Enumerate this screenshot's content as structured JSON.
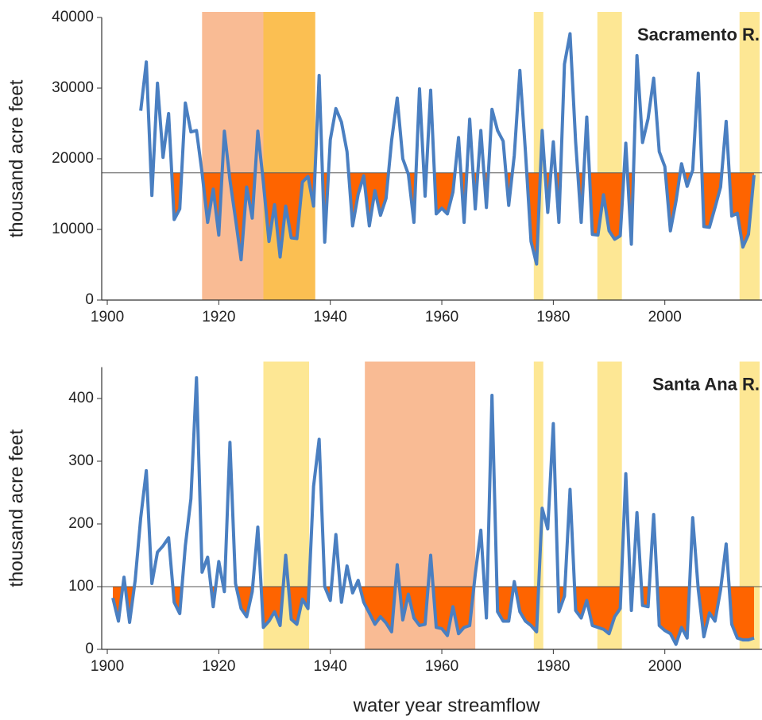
{
  "chart_data": [
    {
      "type": "line",
      "title": "Sacramento R.",
      "y_label": "thousand acre feet",
      "x": [
        1906,
        1907,
        1908,
        1909,
        1910,
        1911,
        1912,
        1913,
        1914,
        1915,
        1916,
        1917,
        1918,
        1919,
        1920,
        1921,
        1922,
        1923,
        1924,
        1925,
        1926,
        1927,
        1928,
        1929,
        1930,
        1931,
        1932,
        1933,
        1934,
        1935,
        1936,
        1937,
        1938,
        1939,
        1940,
        1941,
        1942,
        1943,
        1944,
        1945,
        1946,
        1947,
        1948,
        1949,
        1950,
        1951,
        1952,
        1953,
        1954,
        1955,
        1956,
        1957,
        1958,
        1959,
        1960,
        1961,
        1962,
        1963,
        1964,
        1965,
        1966,
        1967,
        1968,
        1969,
        1970,
        1971,
        1972,
        1973,
        1974,
        1975,
        1976,
        1977,
        1978,
        1979,
        1980,
        1981,
        1982,
        1983,
        1984,
        1985,
        1986,
        1987,
        1988,
        1989,
        1990,
        1991,
        1992,
        1993,
        1994,
        1995,
        1996,
        1997,
        1998,
        1999,
        2000,
        2001,
        2002,
        2003,
        2004,
        2005,
        2006,
        2007,
        2008,
        2009,
        2010,
        2011,
        2012,
        2013,
        2014,
        2015,
        2016
      ],
      "series": [
        {
          "color": "#4a7fc1",
          "values": [
            26800,
            33700,
            14800,
            30700,
            20200,
            26400,
            11400,
            12900,
            27900,
            23800,
            24000,
            18000,
            11000,
            15700,
            9200,
            23900,
            17000,
            11500,
            5700,
            16000,
            11600,
            23900,
            16600,
            8300,
            13500,
            6100,
            13300,
            8800,
            8700,
            16700,
            17500,
            13300,
            31800,
            8200,
            22700,
            27100,
            25200,
            21000,
            10500,
            15000,
            17600,
            10500,
            15500,
            12000,
            14400,
            22600,
            28600,
            20000,
            17800,
            11000,
            29900,
            14700,
            29700,
            12200,
            13000,
            12200,
            15300,
            23000,
            11000,
            25600,
            12900,
            24000,
            13100,
            27000,
            24000,
            22500,
            13400,
            20500,
            32500,
            21000,
            8300,
            5100,
            24000,
            12400,
            22400,
            11000,
            33400,
            37700,
            22400,
            11000,
            25900,
            9300,
            9200,
            14900,
            9800,
            8600,
            9100,
            22200,
            7900,
            34600,
            22300,
            25700,
            31400,
            21000,
            18900,
            9800,
            14000,
            19300,
            16100,
            18400,
            32100,
            10400,
            10300,
            13100,
            16000,
            25300,
            11900,
            12300,
            7500,
            9300,
            17700
          ]
        }
      ],
      "baseline": 18000,
      "fill_color": "#fe6400",
      "spans": [
        {
          "start": 1917,
          "end": 1928,
          "color": "#f9bb94"
        },
        {
          "start": 1928,
          "end": 1937.3,
          "color": "#fbbf52"
        },
        {
          "start": 1976.5,
          "end": 1978.2,
          "color": "#fde794"
        },
        {
          "start": 1987.9,
          "end": 1992.3,
          "color": "#fde794"
        },
        {
          "start": 2013.4,
          "end": 2017,
          "color": "#fde794"
        }
      ],
      "xlim": [
        1899,
        2017
      ],
      "xticks": [
        1900,
        1920,
        1940,
        1960,
        1980,
        2000
      ],
      "ylim": [
        0,
        40000
      ],
      "yticks": [
        0,
        10000,
        20000,
        30000,
        40000
      ]
    },
    {
      "type": "line",
      "title": "Santa Ana R.",
      "y_label": "thousand acre feet",
      "x_label": "water year streamflow",
      "x": [
        1901,
        1902,
        1903,
        1904,
        1905,
        1906,
        1907,
        1908,
        1909,
        1910,
        1911,
        1912,
        1913,
        1914,
        1915,
        1916,
        1917,
        1918,
        1919,
        1920,
        1921,
        1922,
        1923,
        1924,
        1925,
        1926,
        1927,
        1928,
        1929,
        1930,
        1931,
        1932,
        1933,
        1934,
        1935,
        1936,
        1937,
        1938,
        1939,
        1940,
        1941,
        1942,
        1943,
        1944,
        1945,
        1946,
        1947,
        1948,
        1949,
        1950,
        1951,
        1952,
        1953,
        1954,
        1955,
        1956,
        1957,
        1958,
        1959,
        1960,
        1961,
        1962,
        1963,
        1964,
        1965,
        1966,
        1967,
        1968,
        1969,
        1970,
        1971,
        1972,
        1973,
        1974,
        1975,
        1976,
        1977,
        1978,
        1979,
        1980,
        1981,
        1982,
        1983,
        1984,
        1985,
        1986,
        1987,
        1988,
        1989,
        1990,
        1991,
        1992,
        1993,
        1994,
        1995,
        1996,
        1997,
        1998,
        1999,
        2000,
        2001,
        2002,
        2003,
        2004,
        2005,
        2006,
        2007,
        2008,
        2009,
        2010,
        2011,
        2012,
        2013,
        2014,
        2015,
        2016
      ],
      "series": [
        {
          "color": "#4a7fc1",
          "values": [
            82,
            45,
            115,
            43,
            110,
            210,
            285,
            105,
            155,
            165,
            178,
            75,
            57,
            165,
            240,
            433,
            123,
            147,
            68,
            140,
            92,
            330,
            105,
            65,
            52,
            92,
            195,
            35,
            45,
            60,
            38,
            150,
            48,
            40,
            80,
            65,
            260,
            335,
            100,
            78,
            183,
            75,
            133,
            90,
            110,
            75,
            58,
            40,
            52,
            42,
            28,
            135,
            47,
            88,
            50,
            38,
            40,
            150,
            35,
            33,
            22,
            68,
            25,
            35,
            38,
            120,
            190,
            50,
            405,
            60,
            45,
            45,
            108,
            60,
            45,
            38,
            28,
            225,
            192,
            360,
            60,
            85,
            255,
            62,
            50,
            78,
            38,
            35,
            32,
            25,
            52,
            65,
            280,
            62,
            218,
            70,
            68,
            215,
            38,
            30,
            25,
            8,
            35,
            18,
            210,
            95,
            20,
            58,
            45,
            95,
            168,
            40,
            18,
            15,
            15,
            18
          ]
        }
      ],
      "baseline": 100,
      "fill_color": "#fe6400",
      "spans": [
        {
          "start": 1928,
          "end": 1936.2,
          "color": "#fde794"
        },
        {
          "start": 1946.2,
          "end": 1966,
          "color": "#f9bb94"
        },
        {
          "start": 1976.5,
          "end": 1978.2,
          "color": "#fde794"
        },
        {
          "start": 1987.9,
          "end": 1992.3,
          "color": "#fde794"
        },
        {
          "start": 2013.4,
          "end": 2017,
          "color": "#fde794"
        }
      ],
      "xlim": [
        1899,
        2017
      ],
      "xticks": [
        1900,
        1920,
        1940,
        1960,
        1980,
        2000
      ],
      "ylim": [
        0,
        450
      ],
      "yticks": [
        0,
        100,
        200,
        300,
        400
      ]
    }
  ]
}
